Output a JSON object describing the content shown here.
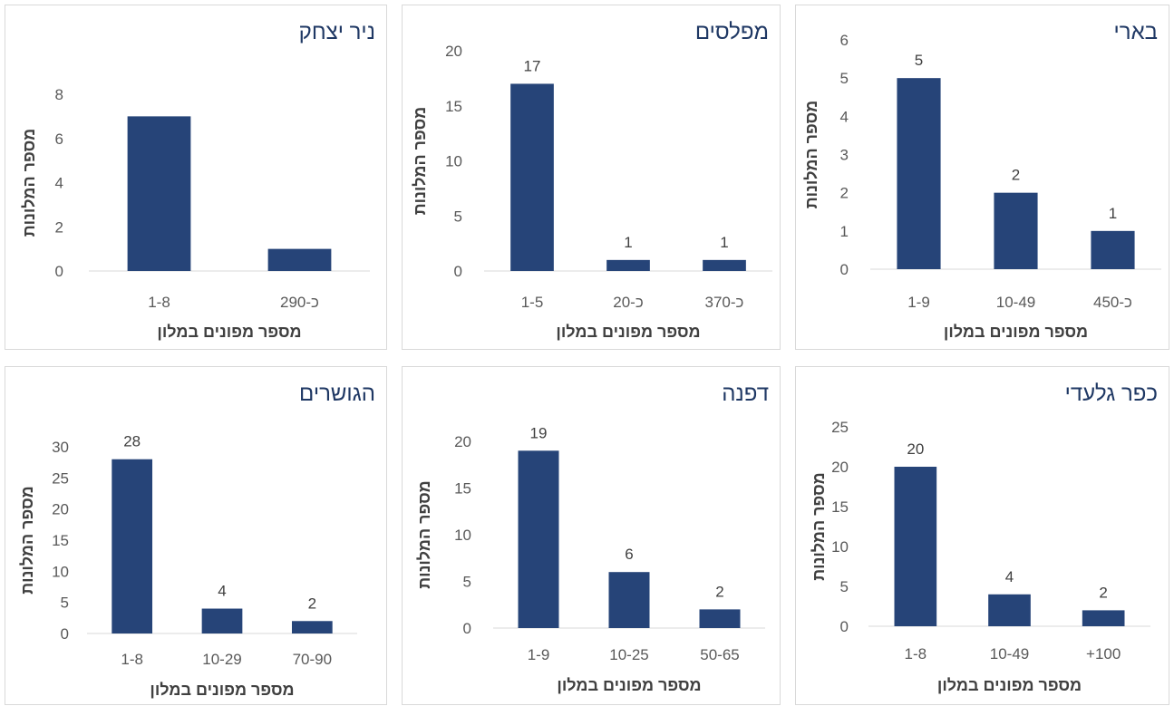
{
  "chart_data": [
    {
      "type": "bar",
      "title": "ניר יצחק",
      "categories": [
        "1-8",
        "כ-290"
      ],
      "values": [
        7,
        1
      ],
      "data_labels": false,
      "ylim": [
        0,
        8
      ],
      "yticks": [
        0,
        2,
        4,
        6,
        8
      ],
      "xlabel": "מספר מפונים במלון",
      "ylabel": "מספר המלונות",
      "color": "#264478"
    },
    {
      "type": "bar",
      "title": "מפלסים",
      "categories": [
        "1-5",
        "כ-20",
        "כ-370"
      ],
      "values": [
        17,
        1,
        1
      ],
      "data_labels": true,
      "ylim": [
        0,
        20
      ],
      "yticks": [
        0,
        5,
        10,
        15,
        20
      ],
      "xlabel": "מספר מפונים במלון",
      "ylabel": "מספר המלונות",
      "color": "#264478"
    },
    {
      "type": "bar",
      "title": "בארי",
      "categories": [
        "1-9",
        "10-49",
        "כ-450"
      ],
      "values": [
        5,
        2,
        1
      ],
      "data_labels": true,
      "ylim": [
        0,
        6
      ],
      "yticks": [
        0,
        1,
        2,
        3,
        4,
        5,
        6
      ],
      "xlabel": "מספר מפונים במלון",
      "ylabel": "מספר המלונות",
      "color": "#264478"
    },
    {
      "type": "bar",
      "title": "הגושרים",
      "categories": [
        "1-8",
        "10-29",
        "70-90"
      ],
      "values": [
        28,
        4,
        2
      ],
      "data_labels": true,
      "ylim": [
        0,
        30
      ],
      "yticks": [
        0,
        5,
        10,
        15,
        20,
        25,
        30
      ],
      "xlabel": "מספר מפונים במלון",
      "ylabel": "מספר המלונות",
      "color": "#264478"
    },
    {
      "type": "bar",
      "title": "דפנה",
      "categories": [
        "1-9",
        "10-25",
        "50-65"
      ],
      "values": [
        19,
        6,
        2
      ],
      "data_labels": true,
      "ylim": [
        0,
        20
      ],
      "yticks": [
        0,
        5,
        10,
        15,
        20
      ],
      "xlabel": "מספר מפונים במלון",
      "ylabel": "מספר המלונות",
      "color": "#264478"
    },
    {
      "type": "bar",
      "title": "כפר גלעדי",
      "categories": [
        "1-8",
        "10-49",
        "+100"
      ],
      "values": [
        20,
        4,
        2
      ],
      "data_labels": true,
      "ylim": [
        0,
        25
      ],
      "yticks": [
        0,
        5,
        10,
        15,
        20,
        25
      ],
      "xlabel": "מספר מפונים במלון",
      "ylabel": "מספר המלונות",
      "color": "#264478"
    }
  ]
}
